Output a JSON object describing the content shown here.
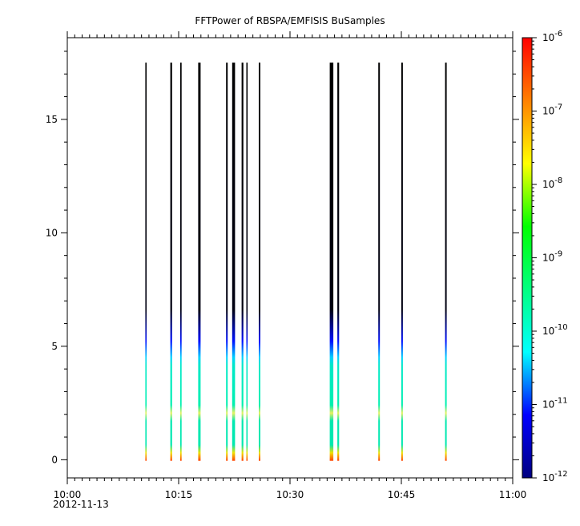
{
  "chart_data": {
    "type": "heatmap",
    "title": "FFTPower of RBSPA/EMFISIS  BuSamples",
    "x_axis": {
      "range_minutes": [
        0,
        60
      ],
      "major_ticks": [
        {
          "minute": 0,
          "label": "10:00"
        },
        {
          "minute": 15,
          "label": "10:15"
        },
        {
          "minute": 30,
          "label": "10:30"
        },
        {
          "minute": 45,
          "label": "10:45"
        },
        {
          "minute": 60,
          "label": "11:00"
        }
      ],
      "date_label": "2012-11-13"
    },
    "y_axis": {
      "range": [
        -0.8,
        18.6
      ],
      "major_ticks": [
        0,
        5,
        10,
        15
      ]
    },
    "colorbar": {
      "scale": "log",
      "range_exp": [
        -12,
        -6
      ],
      "tick_exps": [
        -12,
        -11,
        -10,
        -9,
        -8,
        -7,
        -6
      ],
      "tick_base": "10",
      "colors": [
        "#000080",
        "#0000ff",
        "#00ffff",
        "#00ff80",
        "#00ff00",
        "#ffff00",
        "#ff8000",
        "#ff0000"
      ]
    },
    "spectra": [
      {
        "t": 10.6,
        "w": 1.6
      },
      {
        "t": 14.0,
        "w": 2.2
      },
      {
        "t": 15.3,
        "w": 1.8
      },
      {
        "t": 17.8,
        "w": 3.0
      },
      {
        "t": 21.5,
        "w": 2.0
      },
      {
        "t": 22.4,
        "w": 3.6
      },
      {
        "t": 23.6,
        "w": 2.2
      },
      {
        "t": 24.2,
        "w": 1.6
      },
      {
        "t": 25.9,
        "w": 2.0
      },
      {
        "t": 35.6,
        "w": 4.5
      },
      {
        "t": 36.5,
        "w": 2.2
      },
      {
        "t": 42.0,
        "w": 2.0
      },
      {
        "t": 45.1,
        "w": 2.0
      },
      {
        "t": 51.0,
        "w": 2.0
      }
    ]
  }
}
